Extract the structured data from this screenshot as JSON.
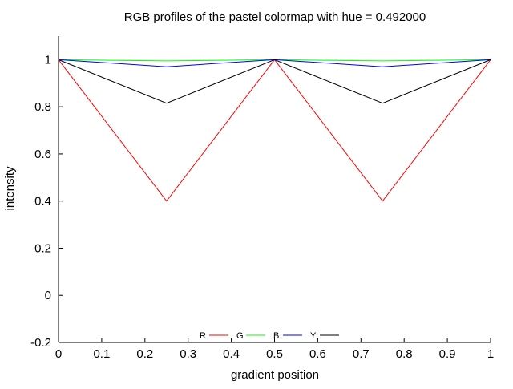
{
  "chart_data": {
    "type": "line",
    "title": "RGB profiles of the pastel colormap with hue = 0.492000",
    "xlabel": "gradient position",
    "ylabel": "intensity",
    "xlim": [
      0,
      1
    ],
    "ylim": [
      -0.2,
      1.1
    ],
    "x_ticks": [
      0,
      0.1,
      0.2,
      0.3,
      0.4,
      0.5,
      0.6,
      0.7,
      0.8,
      0.9,
      1
    ],
    "x_tick_labels": [
      "0",
      "0.1",
      "0.2",
      "0.3",
      "0.4",
      "0.5",
      "0.6",
      "0.7",
      "0.8",
      "0.9",
      "1"
    ],
    "y_ticks": [
      -0.2,
      0,
      0.2,
      0.4,
      0.6,
      0.8,
      1
    ],
    "y_tick_labels": [
      "-0.2",
      "0",
      "0.2",
      "0.4",
      "0.6",
      "0.8",
      "1"
    ],
    "grid": false,
    "legend_position": "bottom-center",
    "series": [
      {
        "name": "R",
        "color": "#ff0000",
        "x": [
          0,
          0.25,
          0.5,
          0.75,
          1
        ],
        "y": [
          1,
          0.4,
          1,
          0.4,
          1
        ]
      },
      {
        "name": "G",
        "color": "#00ff00",
        "x": [
          0,
          0.25,
          0.5,
          0.75,
          1
        ],
        "y": [
          1,
          0.995,
          1,
          0.995,
          1
        ]
      },
      {
        "name": "B",
        "color": "#0000ff",
        "x": [
          0,
          0.25,
          0.5,
          0.75,
          1
        ],
        "y": [
          1,
          0.97,
          1,
          0.97,
          1
        ]
      },
      {
        "name": "Y",
        "color": "#000000",
        "x": [
          0,
          0.25,
          0.5,
          0.75,
          1
        ],
        "y": [
          1,
          0.815,
          1,
          0.815,
          1
        ]
      }
    ]
  }
}
